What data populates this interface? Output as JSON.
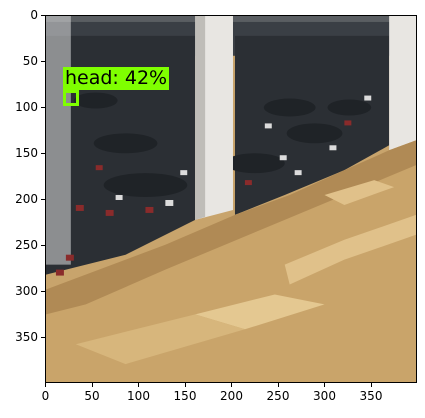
{
  "image": {
    "x_ticks": [
      "0",
      "50",
      "100",
      "150",
      "200",
      "250",
      "300",
      "350"
    ],
    "y_ticks": [
      "0",
      "50",
      "100",
      "150",
      "200",
      "250",
      "300",
      "350"
    ],
    "x_range": [
      0,
      400
    ],
    "y_range": [
      400,
      0
    ]
  },
  "detection": {
    "label": "head: 42%",
    "class": "head",
    "score": 0.42,
    "color": "#7fff00"
  },
  "scene": {
    "description_elements": [
      "atrium-floor",
      "round-tables",
      "chairs",
      "columns",
      "wooden-bleachers"
    ],
    "colors": {
      "floor": "#2a2e33",
      "wood": "#c9a46a",
      "column": "#e8e6e2",
      "chair_red": "#8a2b2b"
    }
  }
}
